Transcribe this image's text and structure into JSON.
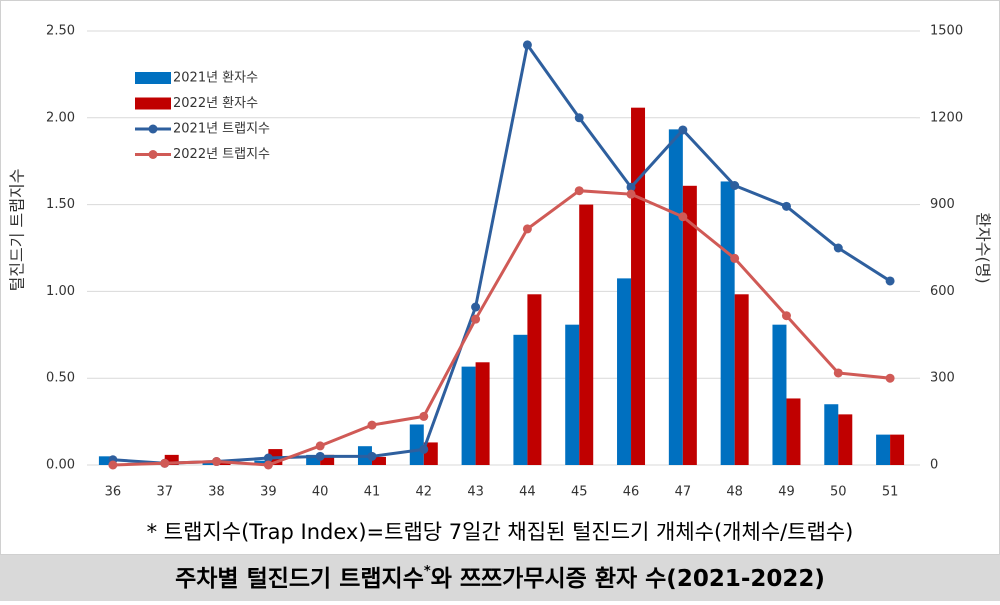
{
  "chart_data": {
    "type": "bar-line",
    "title": [
      "주차별 털진드기 트랩지수",
      "*",
      "와 쯔쯔가무시증 환자 수(2021-2022)"
    ],
    "footnote": "* 트랩지수(Trap Index)=트랩당 7일간 채집된 털진드기 개체수(개체수/트랩수)",
    "ylabel": "털진드기 트랩지수",
    "y2label": "환자수(명)",
    "categories": [
      "36",
      "37",
      "38",
      "39",
      "40",
      "41",
      "42",
      "43",
      "44",
      "45",
      "46",
      "47",
      "48",
      "49",
      "50",
      "51"
    ],
    "series": [
      {
        "name": "2021년 환자수",
        "type": "bar",
        "axis": "y2",
        "color": "#0070c0",
        "values": [
          30,
          5,
          10,
          15,
          35,
          65,
          140,
          340,
          450,
          485,
          645,
          1160,
          980,
          485,
          210,
          105
        ]
      },
      {
        "name": "2022년 환자수",
        "type": "bar",
        "axis": "y2",
        "color": "#c00000",
        "values": [
          0,
          35,
          12,
          55,
          35,
          28,
          78,
          355,
          590,
          900,
          1235,
          965,
          590,
          230,
          175,
          105
        ]
      },
      {
        "name": "2021년 트랩지수",
        "type": "line",
        "axis": "y",
        "color": "#2e5f9e",
        "values": [
          0.03,
          0.01,
          0.02,
          0.04,
          0.05,
          0.05,
          0.09,
          0.91,
          2.42,
          2.0,
          1.6,
          1.93,
          1.61,
          1.49,
          1.25,
          1.06
        ]
      },
      {
        "name": "2022년 트랩지수",
        "type": "line",
        "axis": "y",
        "color": "#d05a56",
        "values": [
          0.0,
          0.01,
          0.02,
          0.0,
          0.11,
          0.23,
          0.28,
          0.84,
          1.36,
          1.58,
          1.56,
          1.43,
          1.19,
          0.86,
          0.53,
          0.5
        ]
      }
    ],
    "ylim": [
      0,
      2.5
    ],
    "yticks": [
      {
        "value": 0,
        "label": "0.00"
      },
      {
        "value": 0.5,
        "label": "0.50"
      },
      {
        "value": 1,
        "label": "1.00"
      },
      {
        "value": 1.5,
        "label": "1.50"
      },
      {
        "value": 2,
        "label": "2.00"
      },
      {
        "value": 2.5,
        "label": "2.50"
      }
    ],
    "y2lim": [
      0,
      1500
    ],
    "y2ticks": [
      0,
      300,
      600,
      900,
      1200,
      1500
    ],
    "grid": true,
    "legend": "upper-left"
  }
}
